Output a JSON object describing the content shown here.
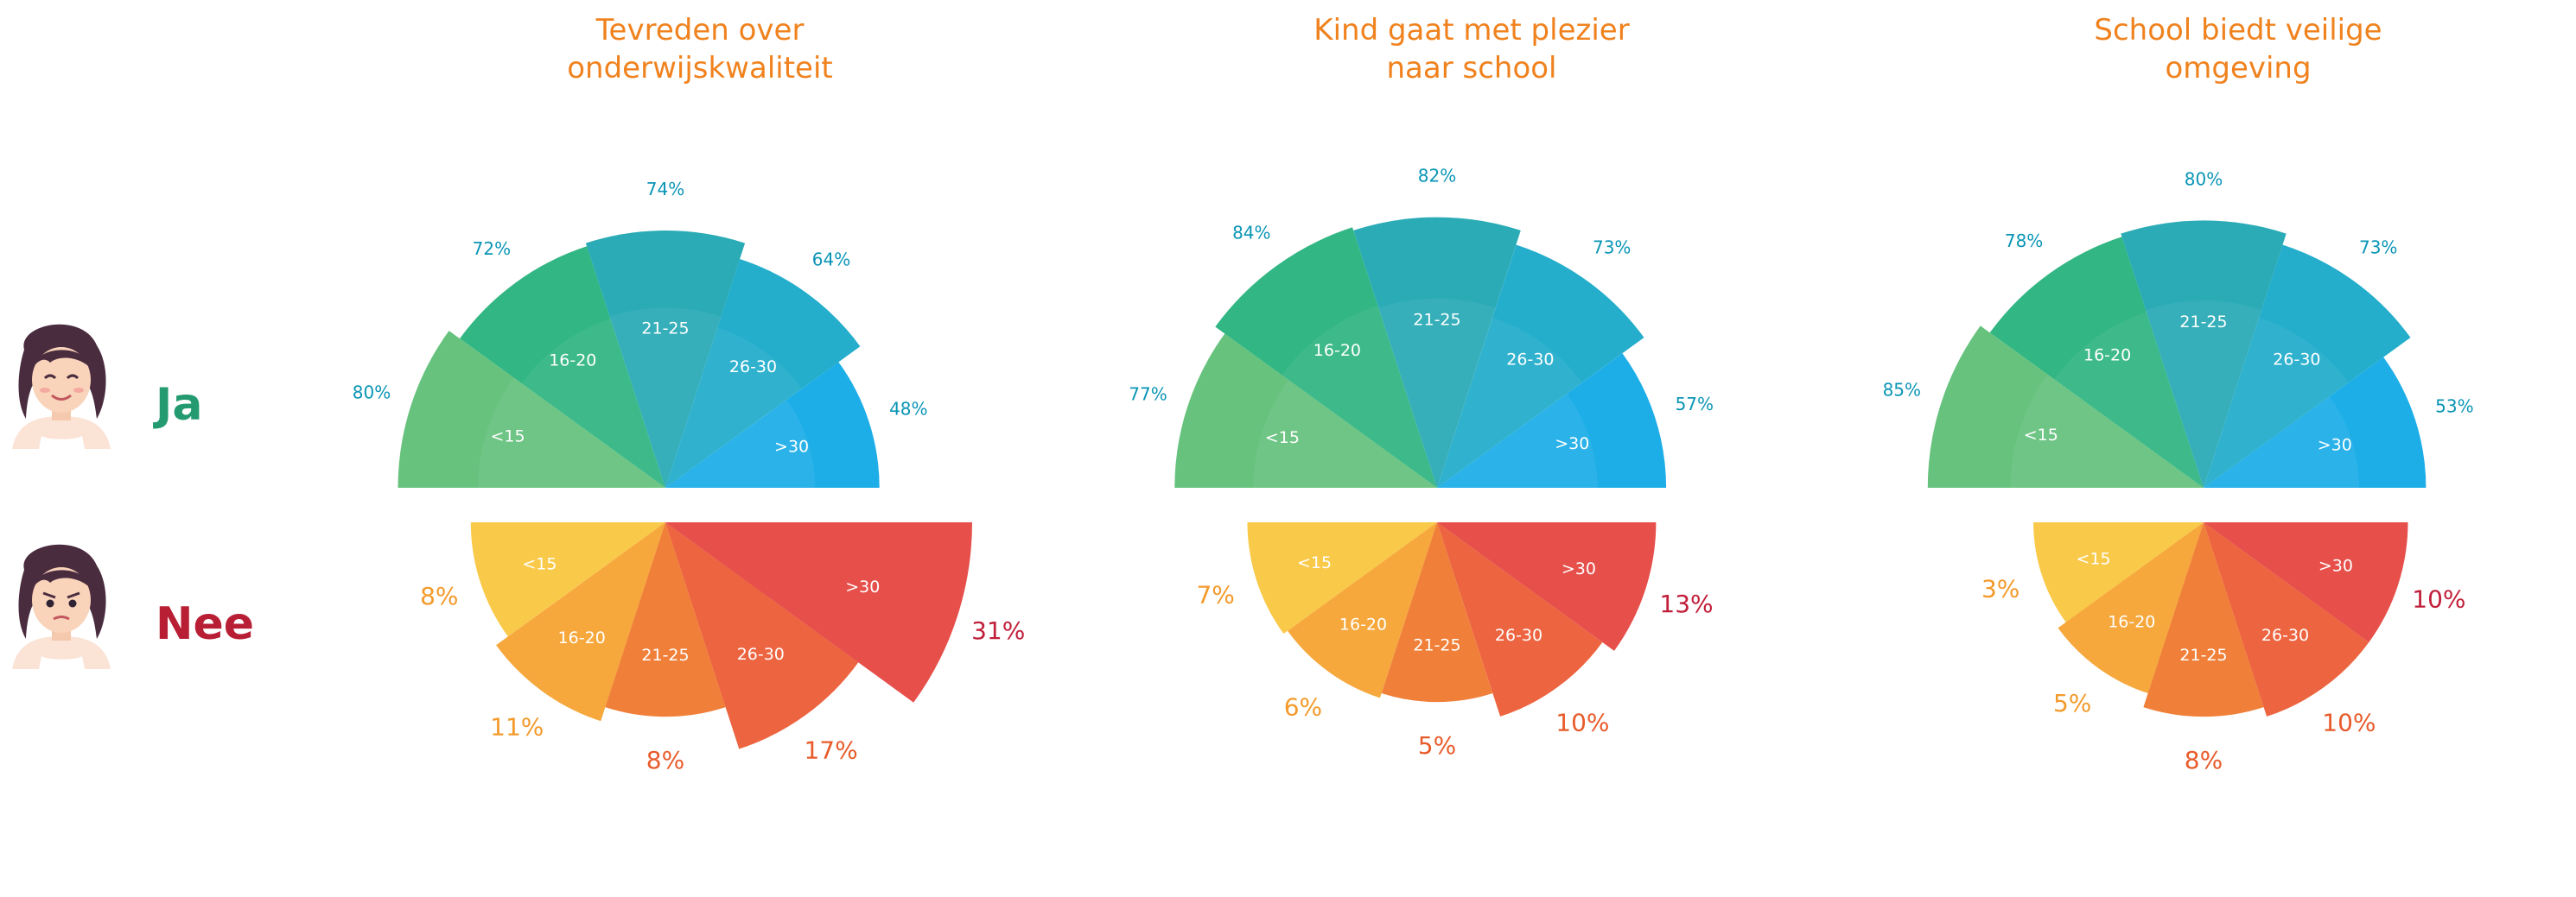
{
  "row_labels": {
    "yes": "Ja",
    "no": "Nee"
  },
  "colors": {
    "title": "#f0821e",
    "yes_label": "#239a6f",
    "no_label": "#b81f35",
    "yes_pct": "#0a95b5",
    "no_pct_light": "#f39a2a",
    "no_pct_mid": "#e85b2a",
    "no_pct_dark": "#c11f3a",
    "yes_slices": [
      "#5bbd74",
      "#22b07a",
      "#1aa5b0",
      "#13a8c8",
      "#0ca8e6"
    ],
    "no_slices": [
      "#f8c43a",
      "#f5a12d",
      "#ef7528",
      "#ec5730",
      "#e4403b"
    ]
  },
  "icons": {
    "happy": "happy-woman-avatar-icon",
    "angry": "angry-woman-avatar-icon"
  },
  "chart_data": [
    {
      "type": "pie",
      "variant": "rose-half",
      "title_lines": [
        "Tevreden over",
        "onderwijskwaliteit"
      ],
      "categories": [
        "<15",
        "16-20",
        "21-25",
        "26-30",
        ">30"
      ],
      "series": [
        {
          "name": "Ja",
          "values": [
            80,
            72,
            74,
            64,
            48
          ]
        },
        {
          "name": "Nee",
          "values": [
            8,
            11,
            8,
            17,
            31
          ]
        }
      ],
      "labels_yes": [
        "80%",
        "72%",
        "74%",
        "64%",
        "48%"
      ],
      "labels_no": [
        "8%",
        "11%",
        "8%",
        "17%",
        "31%"
      ]
    },
    {
      "type": "pie",
      "variant": "rose-half",
      "title_lines": [
        "Kind gaat met plezier",
        "naar school"
      ],
      "categories": [
        "<15",
        "16-20",
        "21-25",
        "26-30",
        ">30"
      ],
      "series": [
        {
          "name": "Ja",
          "values": [
            77,
            84,
            82,
            73,
            57
          ]
        },
        {
          "name": "Nee",
          "values": [
            7,
            6,
            5,
            10,
            13
          ]
        }
      ],
      "labels_yes": [
        "77%",
        "84%",
        "82%",
        "73%",
        "57%"
      ],
      "labels_no": [
        "7%",
        "6%",
        "5%",
        "10%",
        "13%"
      ]
    },
    {
      "type": "pie",
      "variant": "rose-half",
      "title_lines": [
        "School biedt veilige",
        "omgeving"
      ],
      "categories": [
        "<15",
        "16-20",
        "21-25",
        "26-30",
        ">30"
      ],
      "series": [
        {
          "name": "Ja",
          "values": [
            85,
            78,
            80,
            73,
            53
          ]
        },
        {
          "name": "Nee",
          "values": [
            3,
            5,
            8,
            10,
            10
          ]
        }
      ],
      "labels_yes": [
        "85%",
        "78%",
        "80%",
        "73%",
        "53%"
      ],
      "labels_no": [
        "3%",
        "5%",
        "8%",
        "10%",
        "10%"
      ]
    }
  ]
}
